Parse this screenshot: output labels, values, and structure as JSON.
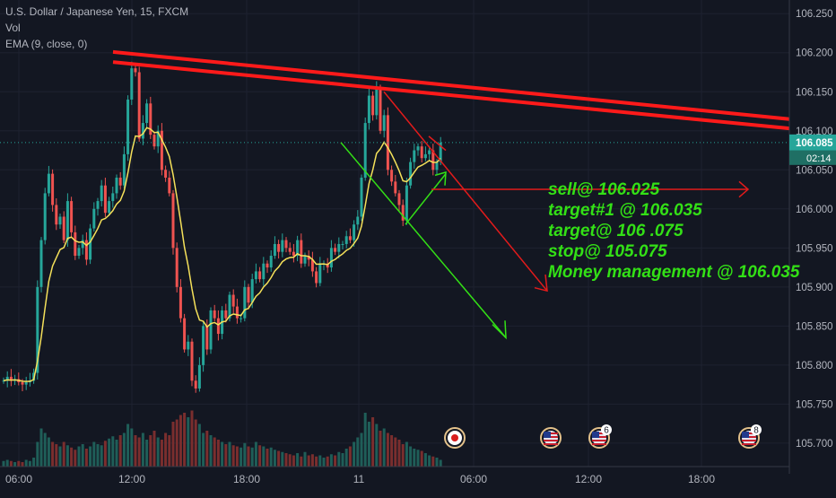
{
  "header": {
    "symbol": "U.S. Dollar / Japanese Yen, 15, FXCM",
    "indicator_vol": "Vol",
    "indicator_ema": "EMA (9, close, 0)"
  },
  "price_badge": {
    "price": "106.085",
    "countdown": "02:14"
  },
  "annotations": [
    "sell@ 106.025",
    "target#1 @ 106.035",
    "target@ 106 .075",
    "stop@ 105.075",
    "Money management @ 106.035"
  ],
  "event_badges": [
    {
      "x": "03:00",
      "label": "",
      "icon": "jp-flag-icon"
    },
    {
      "x": "09:00",
      "label": "",
      "icon": "us-flag-icon"
    },
    {
      "x": "12:30",
      "label": "6",
      "icon": "us-flag-icon"
    },
    {
      "x": "19:30",
      "label": "8",
      "icon": "us-flag-icon"
    }
  ],
  "colors": {
    "background": "#131722",
    "up": "#26a69a",
    "down": "#ef5350",
    "ema": "#f5e15a",
    "trendline": "#ff1a1a",
    "annotation_green": "#33e016",
    "annotation_red": "#e31b1b",
    "current_price_line": "#26a69a"
  },
  "chart_data": {
    "type": "candlestick",
    "title": "U.S. Dollar / Japanese Yen, 15, FXCM",
    "y_ticks": [
      "106.250",
      "106.200",
      "106.150",
      "106.100",
      "106.050",
      "106.000",
      "105.950",
      "105.900",
      "105.850",
      "105.800",
      "105.750",
      "105.700"
    ],
    "x_ticks": [
      "06:00",
      "12:00",
      "18:00",
      "11",
      "06:00",
      "12:00",
      "18:00"
    ],
    "ylim": [
      105.67,
      106.256
    ],
    "current_price": 106.085,
    "candles_close": [
      105.78,
      105.785,
      105.78,
      105.782,
      105.778,
      105.775,
      105.778,
      105.78,
      105.79,
      105.9,
      105.96,
      106.02,
      106.045,
      106.005,
      105.98,
      105.99,
      105.96,
      106.01,
      105.97,
      105.94,
      105.95,
      105.96,
      105.935,
      105.975,
      106.0,
      106.01,
      106.03,
      105.995,
      106.01,
      106.02,
      106.04,
      106.03,
      106.07,
      106.14,
      106.18,
      106.175,
      106.09,
      106.11,
      106.135,
      106.095,
      106.08,
      106.1,
      106.05,
      106.04,
      106.02,
      105.95,
      105.9,
      105.86,
      105.82,
      105.83,
      105.78,
      105.77,
      105.8,
      105.85,
      105.82,
      105.87,
      105.86,
      105.84,
      105.87,
      105.86,
      105.89,
      105.875,
      105.86,
      105.86,
      105.9,
      105.88,
      105.91,
      105.92,
      105.91,
      105.93,
      105.925,
      105.94,
      105.955,
      105.945,
      105.96,
      105.95,
      105.945,
      105.94,
      105.96,
      105.93,
      105.94,
      105.935,
      105.92,
      105.905,
      105.93,
      105.93,
      105.925,
      105.95,
      105.945,
      105.955,
      105.955,
      105.965,
      105.96,
      105.98,
      105.99,
      106.04,
      106.11,
      106.145,
      106.12,
      106.155,
      106.1,
      106.12,
      106.05,
      106.035,
      106.02,
      106.005,
      105.985,
      106.03,
      106.06,
      106.075,
      106.08,
      106.065,
      106.07,
      106.075,
      106.05,
      106.06,
      106.085
    ],
    "series": [
      {
        "name": "Vol",
        "values": [
          5,
          6,
          5,
          4,
          5,
          4,
          6,
          5,
          8,
          22,
          34,
          30,
          26,
          22,
          20,
          18,
          22,
          19,
          17,
          15,
          18,
          20,
          16,
          18,
          22,
          20,
          19,
          23,
          25,
          27,
          24,
          28,
          30,
          38,
          34,
          28,
          26,
          30,
          24,
          28,
          32,
          26,
          24,
          30,
          28,
          40,
          42,
          46,
          48,
          44,
          50,
          42,
          38,
          30,
          32,
          28,
          26,
          24,
          22,
          20,
          22,
          19,
          18,
          17,
          21,
          18,
          17,
          22,
          19,
          18,
          16,
          17,
          15,
          14,
          13,
          12,
          11,
          10,
          12,
          9,
          13,
          10,
          11,
          9,
          10,
          8,
          9,
          11,
          10,
          13,
          12,
          16,
          18,
          22,
          26,
          30,
          48,
          40,
          44,
          38,
          32,
          34,
          30,
          28,
          26,
          24,
          20,
          22,
          18,
          16,
          15,
          14,
          12,
          10,
          9,
          8,
          6
        ]
      }
    ]
  }
}
